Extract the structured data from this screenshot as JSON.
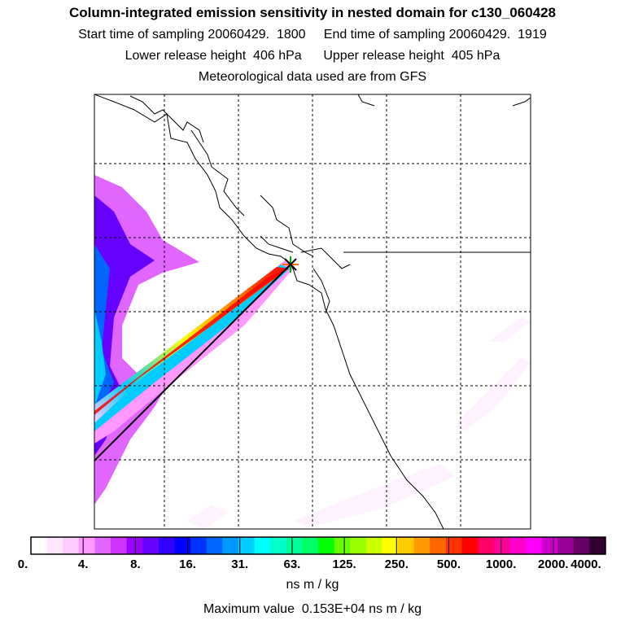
{
  "header": {
    "title": "Column-integrated emission sensitivity in nested domain for c130_060428",
    "line_sampling": "Start time of sampling 20060429.  1800     End time of sampling 20060429.  1919",
    "line_release": "Lower release height  406 hPa      Upper release height  405 hPa",
    "line_met": "Meteorological data used are from GFS"
  },
  "colorbar": {
    "labels": [
      "0.",
      "4.",
      "8.",
      "16.",
      "31.",
      "63.",
      "125.",
      "250.",
      "500.",
      "1000.",
      "2000.",
      "4000."
    ],
    "colors": [
      "#ffffff",
      "#ffe6ff",
      "#ffccff",
      "#ff99ff",
      "#e066ff",
      "#cc33ff",
      "#9900ff",
      "#6600ff",
      "#3300ff",
      "#0000ff",
      "#0033ff",
      "#0066ff",
      "#0099ff",
      "#00ccff",
      "#00ffff",
      "#00ffcc",
      "#00ff99",
      "#00ff66",
      "#00ff00",
      "#66ff00",
      "#99ff00",
      "#ccff00",
      "#ffff00",
      "#ffcc00",
      "#ff9900",
      "#ff6600",
      "#ff3300",
      "#ff0000",
      "#ff0066",
      "#ff0099",
      "#ff00cc",
      "#ff00ff",
      "#cc00cc",
      "#990099",
      "#660066",
      "#330033"
    ],
    "units": "ns m / kg",
    "max_label": "Maximum value  0.153E+04 ns m / kg"
  },
  "map": {
    "border_color": "#000000",
    "grid_style": "dashed",
    "plume_colors": {
      "low": "#ffccff",
      "mid": "#0099ff",
      "core": "#ff0000"
    },
    "release_marker": "star-marker-icon"
  }
}
